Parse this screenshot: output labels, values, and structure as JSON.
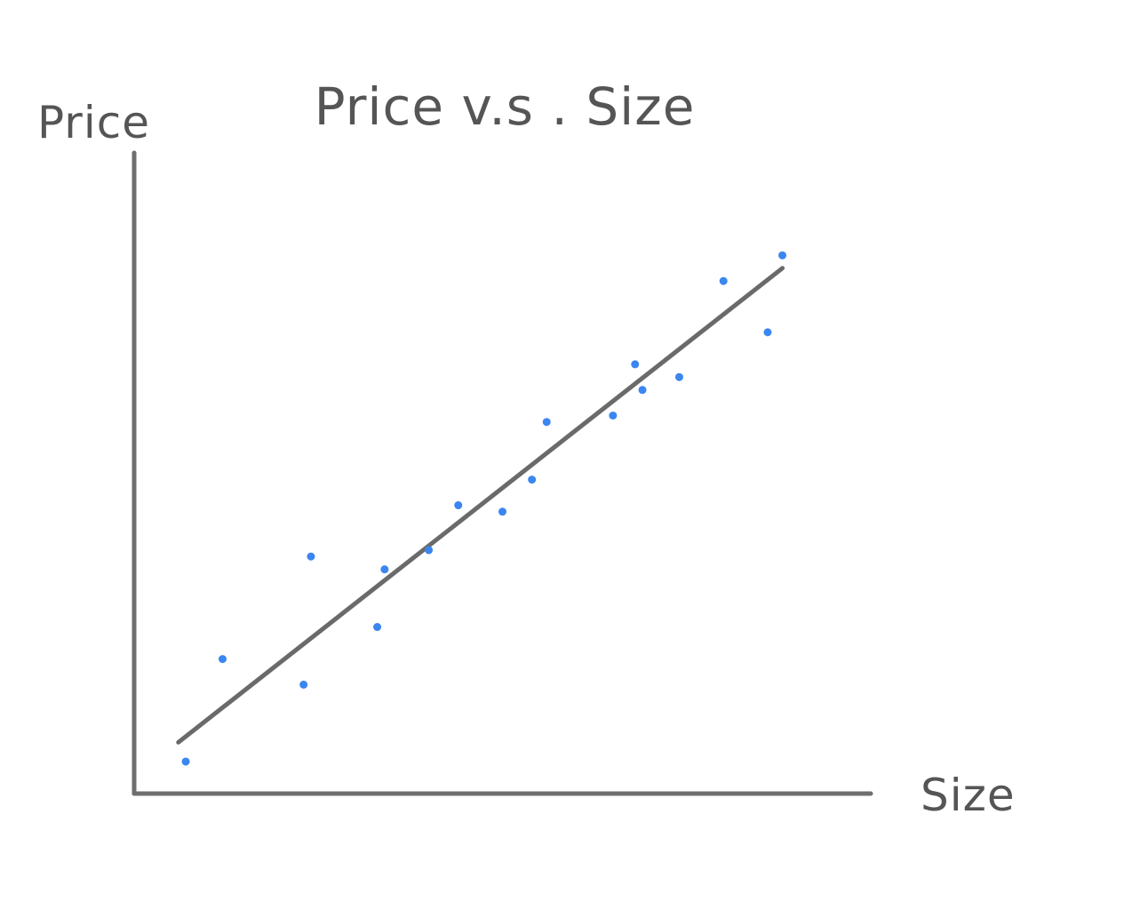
{
  "chart_data": {
    "type": "scatter",
    "title": "Price v.s . Size",
    "xlabel": "Size",
    "ylabel": "Price",
    "xlim": [
      0,
      100
    ],
    "ylim": [
      0,
      100
    ],
    "grid": false,
    "legend": "none",
    "colors": {
      "points": "#3b86f0",
      "axes": "#6f6f6f",
      "text": "#555555"
    },
    "series": [
      {
        "x": [
          7,
          12,
          23,
          24,
          33,
          34,
          40,
          44,
          50,
          54,
          56,
          65,
          68,
          69,
          74,
          80,
          86,
          88
        ],
        "y": [
          5,
          21,
          17,
          37,
          26,
          35,
          38,
          45,
          44,
          49,
          58,
          59,
          67,
          63,
          65,
          80,
          72,
          84
        ]
      }
    ],
    "trendline": {
      "x": [
        6,
        88
      ],
      "y": [
        8,
        82
      ]
    }
  }
}
